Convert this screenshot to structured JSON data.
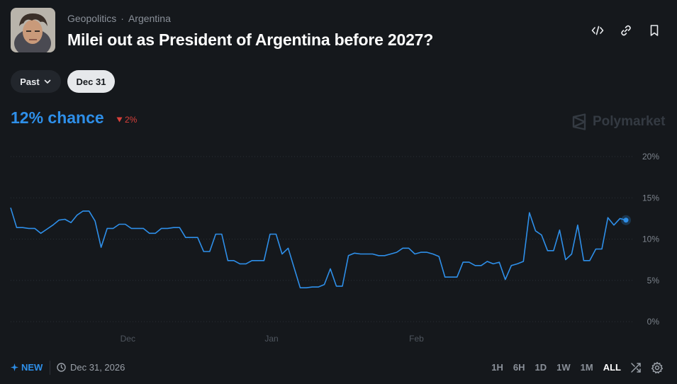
{
  "header": {
    "breadcrumb": [
      "Geopolitics",
      "Argentina"
    ],
    "breadcrumb_separator": "·",
    "title": "Milei out as President of Argentina before 2027?",
    "actions": [
      "embed-icon",
      "link-icon",
      "bookmark-icon"
    ]
  },
  "controls": {
    "past_label": "Past",
    "date_label": "Dec 31"
  },
  "summary": {
    "chance": "12% chance",
    "delta": "2%",
    "delta_direction": "down",
    "brand": "Polymarket"
  },
  "footer": {
    "new_label": "NEW",
    "end_date": "Dec 31, 2026",
    "ranges": [
      "1H",
      "6H",
      "1D",
      "1W",
      "1M",
      "ALL"
    ],
    "active_range": "ALL"
  },
  "colors": {
    "accent": "#2e8fe9",
    "negative": "#d9403a",
    "background": "#15181c"
  },
  "chart_data": {
    "type": "line",
    "x_ticks": [
      "Dec",
      "Jan",
      "Feb"
    ],
    "y_ticks": [
      "20%",
      "15%",
      "10%",
      "5%",
      "0%"
    ],
    "ylim": [
      0,
      20
    ],
    "grid": true,
    "series": [
      {
        "values": [
          13.8,
          11.4,
          11.4,
          11.3,
          11.3,
          10.7,
          11.2,
          11.7,
          12.3,
          12.4,
          12.0,
          12.9,
          13.4,
          13.4,
          12.2,
          9.0,
          11.3,
          11.3,
          11.8,
          11.8,
          11.3,
          11.3,
          11.3,
          10.7,
          10.7,
          11.3,
          11.3,
          11.4,
          11.4,
          10.2,
          10.2,
          10.2,
          8.5,
          8.5,
          10.6,
          10.6,
          7.4,
          7.4,
          7.0,
          7.0,
          7.4,
          7.4,
          7.4,
          10.6,
          10.6,
          8.2,
          8.9,
          6.5,
          4.1,
          4.1,
          4.2,
          4.2,
          4.5,
          6.4,
          4.3,
          4.3,
          8.0,
          8.3,
          8.2,
          8.2,
          8.2,
          8.0,
          8.0,
          8.2,
          8.4,
          8.9,
          8.9,
          8.2,
          8.4,
          8.4,
          8.2,
          7.9,
          5.4,
          5.4,
          5.4,
          7.2,
          7.2,
          6.8,
          6.8,
          7.3,
          7.0,
          7.2,
          5.1,
          6.8,
          7.0,
          7.3,
          13.2,
          11.0,
          10.5,
          8.6,
          8.6,
          11.1,
          7.5,
          8.2,
          11.7,
          7.4,
          7.4,
          8.8,
          8.8,
          12.6,
          11.7,
          12.5,
          12.3
        ]
      }
    ]
  }
}
